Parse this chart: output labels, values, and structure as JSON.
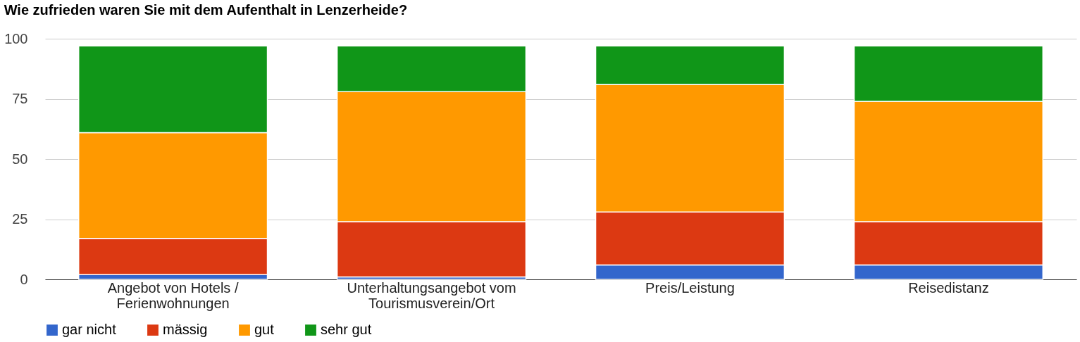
{
  "chart_data": {
    "type": "bar",
    "title": "Wie zufrieden waren Sie mit dem Aufenthalt in Lenzerheide?",
    "categories": [
      "Angebot von Hotels / Ferienwohnungen",
      "Unterhaltungsangebot vom Tourismusverein/Ort",
      "Preis/Leistung",
      "Reisedistanz"
    ],
    "stacked": true,
    "series": [
      {
        "name": "gar nicht",
        "color": "#3366cc",
        "values": [
          2,
          1,
          6,
          6
        ]
      },
      {
        "name": "mässig",
        "color": "#dc3912",
        "values": [
          15,
          23,
          22,
          18
        ]
      },
      {
        "name": "gut",
        "color": "#ff9900",
        "values": [
          44,
          54,
          53,
          50
        ]
      },
      {
        "name": "sehr gut",
        "color": "#109618",
        "values": [
          36,
          19,
          16,
          23
        ]
      }
    ],
    "ylim": [
      0,
      100
    ],
    "yticks": [
      0,
      25,
      50,
      75,
      100
    ],
    "grid": "y",
    "legend": "bottom"
  }
}
